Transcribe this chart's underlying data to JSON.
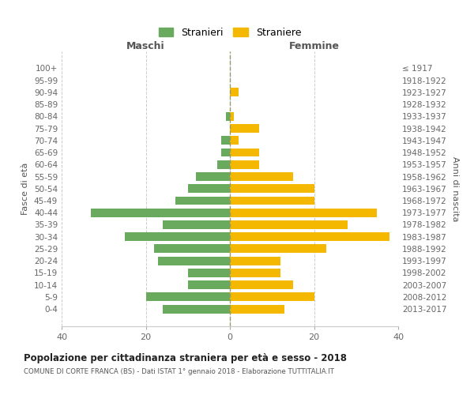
{
  "age_groups": [
    "100+",
    "95-99",
    "90-94",
    "85-89",
    "80-84",
    "75-79",
    "70-74",
    "65-69",
    "60-64",
    "55-59",
    "50-54",
    "45-49",
    "40-44",
    "35-39",
    "30-34",
    "25-29",
    "20-24",
    "15-19",
    "10-14",
    "5-9",
    "0-4"
  ],
  "birth_years": [
    "≤ 1917",
    "1918-1922",
    "1923-1927",
    "1928-1932",
    "1933-1937",
    "1938-1942",
    "1943-1947",
    "1948-1952",
    "1953-1957",
    "1958-1962",
    "1963-1967",
    "1968-1972",
    "1973-1977",
    "1978-1982",
    "1983-1987",
    "1988-1992",
    "1993-1997",
    "1998-2002",
    "2003-2007",
    "2008-2012",
    "2013-2017"
  ],
  "maschi": [
    0,
    0,
    0,
    0,
    1,
    0,
    2,
    2,
    3,
    8,
    10,
    13,
    33,
    16,
    25,
    18,
    17,
    10,
    10,
    20,
    16
  ],
  "femmine": [
    0,
    0,
    2,
    0,
    1,
    7,
    2,
    7,
    7,
    15,
    20,
    20,
    35,
    28,
    38,
    23,
    12,
    12,
    15,
    20,
    13
  ],
  "maschi_color": "#6aaa5e",
  "femmine_color": "#f5b800",
  "title": "Popolazione per cittadinanza straniera per età e sesso - 2018",
  "subtitle": "COMUNE DI CORTE FRANCA (BS) - Dati ISTAT 1° gennaio 2018 - Elaborazione TUTTITALIA.IT",
  "xlabel_left": "Maschi",
  "xlabel_right": "Femmine",
  "ylabel_left": "Fasce di età",
  "ylabel_right": "Anni di nascita",
  "legend_maschi": "Stranieri",
  "legend_femmine": "Straniere",
  "xlim": 40,
  "background_color": "#ffffff",
  "grid_color": "#cccccc"
}
